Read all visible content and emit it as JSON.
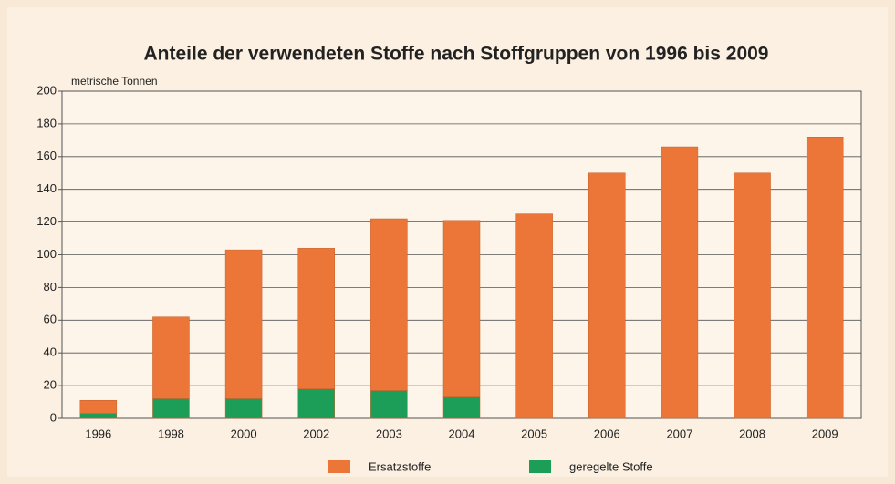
{
  "chart_data": {
    "type": "stacked_bar",
    "title": "Anteile der verwendeten Stoffe nach Stoffgruppen von 1996 bis 2009",
    "y_label": "metrische Tonnen",
    "categories": [
      "1996",
      "1998",
      "2000",
      "2002",
      "2003",
      "2004",
      "2005",
      "2006",
      "2007",
      "2008",
      "2009"
    ],
    "series": [
      {
        "name": "Ersatzstoffe",
        "color": "#ec7637",
        "values": [
          8,
          50,
          91,
          86,
          105,
          108,
          125,
          150,
          166,
          150,
          172
        ]
      },
      {
        "name": "geregelte Stoffe",
        "color": "#1d9e58",
        "values": [
          3,
          12,
          12,
          18,
          17,
          13,
          0,
          0,
          0,
          0,
          0
        ]
      }
    ],
    "ylim": [
      0,
      200
    ],
    "yticks": [
      0,
      20,
      40,
      60,
      80,
      100,
      120,
      140,
      160,
      180,
      200
    ],
    "grid": true
  }
}
